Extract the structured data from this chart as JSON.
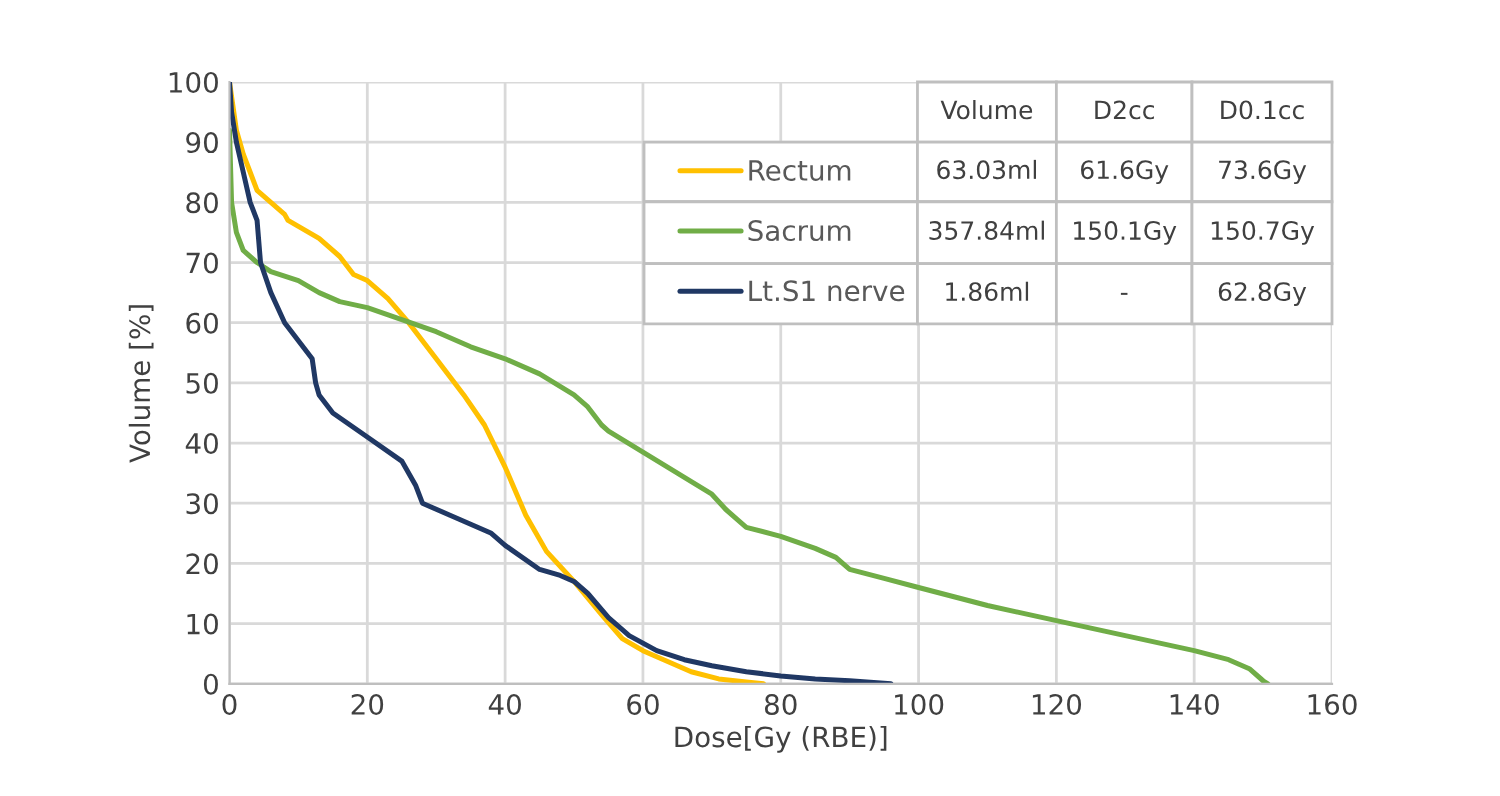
{
  "chart_data": {
    "type": "line",
    "xlabel": "Dose[Gy (RBE)]",
    "ylabel": "Volume [%]",
    "xlim": [
      0,
      160
    ],
    "ylim": [
      0,
      100
    ],
    "xticks": [
      0,
      20,
      40,
      60,
      80,
      100,
      120,
      140,
      160
    ],
    "yticks": [
      0,
      10,
      20,
      30,
      40,
      50,
      60,
      70,
      80,
      90,
      100
    ],
    "grid": true,
    "legend": "top right",
    "marker": "none",
    "line_style": "solid",
    "annotations": [
      "Volume",
      "D2cc",
      "D0.1cc",
      "63.03ml",
      "61.6Gy",
      "73.6Gy",
      "357.84ml",
      "150.1Gy",
      "150.7Gy",
      "1.86ml",
      "-",
      "62.8Gy"
    ],
    "series": [
      {
        "name": "Rectum",
        "color": "#ffc000",
        "x": [
          0,
          1,
          2,
          3,
          4,
          6,
          8,
          8.5,
          10,
          13,
          16,
          18,
          20,
          23,
          26,
          30,
          34,
          37,
          40,
          43,
          46,
          50,
          54,
          57,
          60,
          63,
          67,
          71,
          75,
          77.5
        ],
        "values": [
          100,
          92,
          88,
          85,
          82,
          80,
          78,
          77,
          76,
          74,
          71,
          68,
          67,
          64,
          60,
          54,
          48,
          43,
          36,
          28,
          22,
          17,
          11.5,
          7.5,
          5.5,
          4,
          2,
          0.8,
          0.3,
          0
        ]
      },
      {
        "name": "Sacrum",
        "color": "#70ad47",
        "x": [
          0,
          0.3,
          1,
          2,
          4,
          6,
          10,
          13,
          16,
          20,
          25,
          30,
          35,
          40,
          45,
          50,
          52,
          54,
          55,
          60,
          65,
          70,
          72,
          74,
          75,
          80,
          85,
          88,
          90,
          95,
          100,
          110,
          120,
          130,
          140,
          145,
          148,
          150,
          150.7
        ],
        "values": [
          92,
          80,
          75,
          72,
          70,
          68.5,
          67,
          65,
          63.5,
          62.5,
          60.5,
          58.5,
          56,
          54,
          51.5,
          48,
          46,
          43,
          42,
          38.5,
          35,
          31.5,
          29,
          27,
          26,
          24.5,
          22.5,
          21,
          19,
          17.5,
          16,
          13,
          10.5,
          8,
          5.5,
          4,
          2.5,
          0.5,
          0
        ]
      },
      {
        "name": "Lt.S1 nerve",
        "color": "#203864",
        "x": [
          0,
          0.3,
          1,
          2,
          3,
          4,
          4.5,
          6,
          8,
          10,
          12,
          12.5,
          13,
          15,
          20,
          25,
          27,
          28,
          32,
          38,
          40,
          45,
          48,
          50,
          52,
          55,
          58,
          62,
          66,
          70,
          75,
          80,
          85,
          90,
          96
        ],
        "values": [
          100,
          95,
          90,
          85,
          80,
          77,
          70,
          65,
          60,
          57,
          54,
          50,
          48,
          45,
          41,
          37,
          33,
          30,
          28,
          25,
          23,
          19,
          18,
          17,
          15,
          11,
          8,
          5.5,
          4,
          3,
          2,
          1.3,
          0.8,
          0.5,
          0
        ]
      }
    ]
  }
}
